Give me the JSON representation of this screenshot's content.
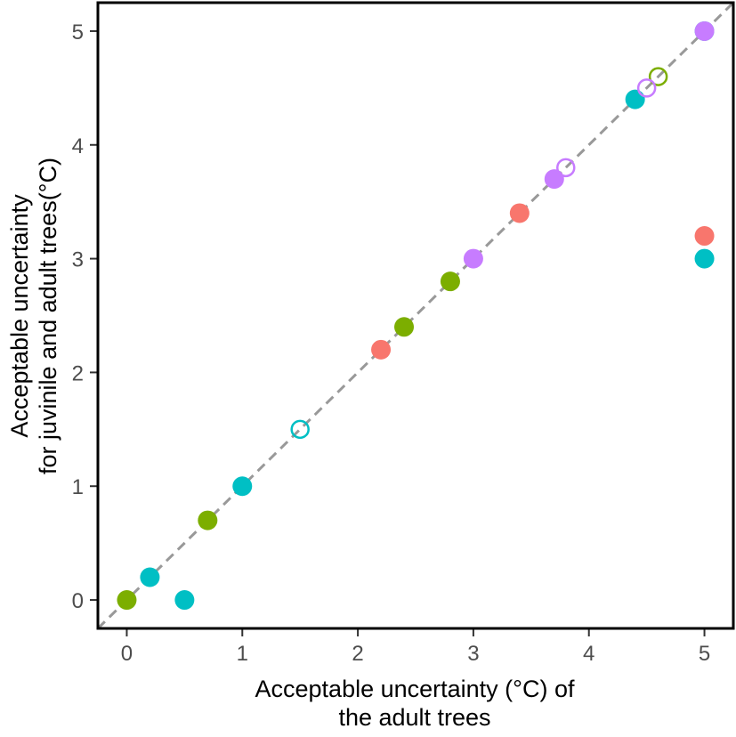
{
  "chart_data": {
    "type": "scatter",
    "title": "",
    "xlabel_lines": [
      "Acceptable uncertainty (°C) of",
      "the adult trees"
    ],
    "ylabel_lines": [
      "Acceptable uncertainty",
      "for juvinile and adult trees(°C)"
    ],
    "xlim": [
      -0.25,
      5.25
    ],
    "ylim": [
      -0.25,
      5.25
    ],
    "x_ticks": [
      0,
      1,
      2,
      3,
      4,
      5
    ],
    "y_ticks": [
      0,
      1,
      2,
      3,
      4,
      5
    ],
    "x_tick_labels": [
      "0",
      "1",
      "2",
      "3",
      "4",
      "5"
    ],
    "y_tick_labels": [
      "0",
      "1",
      "2",
      "3",
      "4",
      "5"
    ],
    "grid": false,
    "reference_line": {
      "type": "identity",
      "style": "dashed",
      "color": "#999999"
    },
    "series": [
      {
        "name": "red",
        "color": "#F8766D",
        "points": [
          {
            "x": 2.2,
            "y": 2.2,
            "filled": true
          },
          {
            "x": 3.4,
            "y": 3.4,
            "filled": true
          },
          {
            "x": 5.0,
            "y": 3.2,
            "filled": true
          }
        ]
      },
      {
        "name": "green",
        "color": "#7CAE00",
        "points": [
          {
            "x": 0.0,
            "y": 0.0,
            "filled": true
          },
          {
            "x": 0.7,
            "y": 0.7,
            "filled": true
          },
          {
            "x": 2.4,
            "y": 2.4,
            "filled": true
          },
          {
            "x": 2.8,
            "y": 2.8,
            "filled": true
          },
          {
            "x": 4.6,
            "y": 4.6,
            "filled": false
          }
        ]
      },
      {
        "name": "cyan",
        "color": "#00BFC4",
        "points": [
          {
            "x": 0.2,
            "y": 0.2,
            "filled": true
          },
          {
            "x": 0.5,
            "y": 0.0,
            "filled": true
          },
          {
            "x": 1.0,
            "y": 1.0,
            "filled": true
          },
          {
            "x": 1.5,
            "y": 1.5,
            "filled": false
          },
          {
            "x": 4.4,
            "y": 4.4,
            "filled": true
          },
          {
            "x": 5.0,
            "y": 3.0,
            "filled": true
          },
          {
            "x": 5.0,
            "y": 5.0,
            "filled": true
          }
        ]
      },
      {
        "name": "purple",
        "color": "#C77CFF",
        "points": [
          {
            "x": 3.0,
            "y": 3.0,
            "filled": true
          },
          {
            "x": 3.7,
            "y": 3.7,
            "filled": true
          },
          {
            "x": 3.8,
            "y": 3.8,
            "filled": false
          },
          {
            "x": 4.5,
            "y": 4.5,
            "filled": false
          },
          {
            "x": 5.0,
            "y": 5.0,
            "filled": true
          }
        ]
      }
    ]
  }
}
